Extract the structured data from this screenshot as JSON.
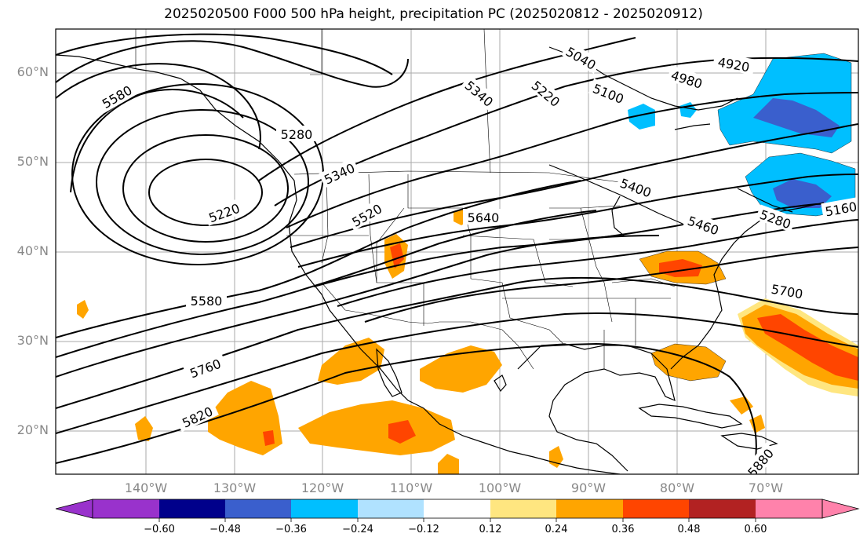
{
  "title": "2025020500 F000 500 hPa height, precipitation PC (2025020812 - 2025020912)",
  "lat_labels": [
    "60°N",
    "50°N",
    "40°N",
    "30°N",
    "20°N"
  ],
  "lon_labels": [
    "140°W",
    "130°W",
    "120°W",
    "110°W",
    "100°W",
    "90°W",
    "80°W",
    "70°W"
  ],
  "colorbar": {
    "labels": [
      "−0.60",
      "−0.48",
      "−0.36",
      "−0.24",
      "−0.12",
      "0.12",
      "0.24",
      "0.36",
      "0.48",
      "0.60"
    ],
    "colors": [
      "#9932cc",
      "#00008b",
      "#3a5fcd",
      "#00bfff",
      "#b0e2ff",
      "#ffffff",
      "#ffe680",
      "#ffa500",
      "#ff4500",
      "#b22222",
      "#ff82ab"
    ]
  },
  "contour_labels": [
    "5580",
    "5280",
    "5340",
    "5220",
    "5520",
    "5640",
    "5580",
    "5760",
    "5820",
    "5040",
    "5220",
    "5340",
    "5100",
    "4920",
    "4980",
    "5400",
    "5460",
    "5160",
    "5280",
    "5700",
    "5880"
  ],
  "colors": {
    "land_border": "#000000",
    "grid": "#aaaaaa",
    "contour": "#000000"
  }
}
